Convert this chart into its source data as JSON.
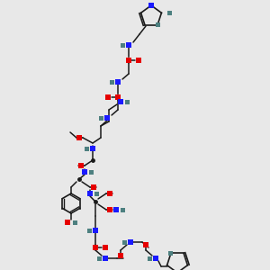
{
  "bg_color": "#e8e8e8",
  "line_color": "#1a1a1a",
  "N_color": "#1a1aff",
  "O_color": "#e60000",
  "H_color": "#4d8080",
  "figsize": [
    3.0,
    3.0
  ],
  "dpi": 100
}
